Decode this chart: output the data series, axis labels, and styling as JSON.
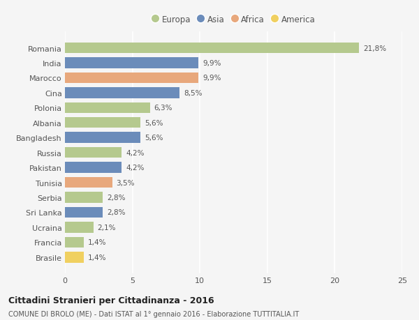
{
  "countries": [
    "Romania",
    "India",
    "Marocco",
    "Cina",
    "Polonia",
    "Albania",
    "Bangladesh",
    "Russia",
    "Pakistan",
    "Tunisia",
    "Serbia",
    "Sri Lanka",
    "Ucraina",
    "Francia",
    "Brasile"
  ],
  "values": [
    21.8,
    9.9,
    9.9,
    8.5,
    6.3,
    5.6,
    5.6,
    4.2,
    4.2,
    3.5,
    2.8,
    2.8,
    2.1,
    1.4,
    1.4
  ],
  "labels": [
    "21,8%",
    "9,9%",
    "9,9%",
    "8,5%",
    "6,3%",
    "5,6%",
    "5,6%",
    "4,2%",
    "4,2%",
    "3,5%",
    "2,8%",
    "2,8%",
    "2,1%",
    "1,4%",
    "1,4%"
  ],
  "continents": [
    "Europa",
    "Asia",
    "Africa",
    "Asia",
    "Europa",
    "Europa",
    "Asia",
    "Europa",
    "Asia",
    "Africa",
    "Europa",
    "Asia",
    "Europa",
    "Europa",
    "America"
  ],
  "colors": {
    "Europa": "#b5c98e",
    "Asia": "#6b8cba",
    "Africa": "#e8a87c",
    "America": "#f0d060"
  },
  "legend_order": [
    "Europa",
    "Asia",
    "Africa",
    "America"
  ],
  "xlim": [
    0,
    25
  ],
  "xticks": [
    0,
    5,
    10,
    15,
    20,
    25
  ],
  "title": "Cittadini Stranieri per Cittadinanza - 2016",
  "subtitle": "COMUNE DI BROLO (ME) - Dati ISTAT al 1° gennaio 2016 - Elaborazione TUTTITALIA.IT",
  "background_color": "#f5f5f5",
  "grid_color": "#ffffff",
  "bar_height": 0.72
}
